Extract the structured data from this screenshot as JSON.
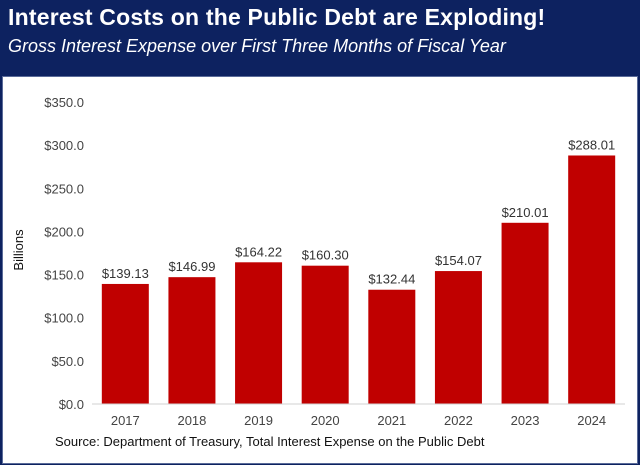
{
  "header": {
    "title": "Interest Costs on the Public Debt are Exploding!",
    "subtitle": "Gross Interest Expense over First Three Months of Fiscal Year"
  },
  "source": "Source: Department of Treasury, Total Interest Expense on the Public Debt",
  "chart_data": {
    "type": "bar",
    "title": "Interest Costs on the Public Debt are Exploding!",
    "subtitle": "Gross Interest Expense over First Three Months of Fiscal Year",
    "xlabel": "",
    "ylabel": "Billions",
    "categories": [
      "2017",
      "2018",
      "2019",
      "2020",
      "2021",
      "2022",
      "2023",
      "2024"
    ],
    "values": [
      139.13,
      146.99,
      164.22,
      160.3,
      132.44,
      154.07,
      210.01,
      288.01
    ],
    "data_labels": [
      "$139.13",
      "$146.99",
      "$164.22",
      "$160.30",
      "$132.44",
      "$154.07",
      "$210.01",
      "$288.01"
    ],
    "yticks": [
      "$0.0",
      "$50.0",
      "$100.0",
      "$150.0",
      "$200.0",
      "$250.0",
      "$300.0",
      "$350.0"
    ],
    "ylim": [
      0,
      350
    ],
    "grid": false,
    "bar_color": "#c00000"
  }
}
